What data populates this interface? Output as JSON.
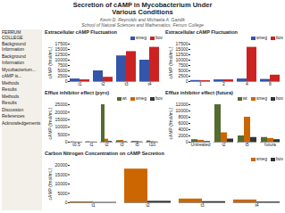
{
  "title": "Secretion of cAMP in Mycobacterium Under\nVarious Conditions",
  "subtitle": "Kevin D. Reynolds and Michaela A. Gazdik\nSchool of Natural Sciences and Mathematics, Ferrum College",
  "annotations": [
    "FERRUM\nCOLLEGE",
    "Background Information",
    "Background",
    "Information",
    "Mycobacterium...",
    "cAMP is...",
    "Methods",
    "Results",
    "Methods",
    "Results",
    "Discussion",
    "References",
    "Acknowledgements"
  ],
  "chart_data": [
    {
      "type": "bar",
      "title": "Extracellular cAMP Fluctuation",
      "categories": [
        "t1",
        "t2",
        "t3",
        "t4"
      ],
      "series": [
        {
          "name": "smeg",
          "color": "#3355aa",
          "values": [
            1200,
            5000,
            12000,
            10000
          ]
        },
        {
          "name": "bov",
          "color": "#cc2222",
          "values": [
            800,
            2000,
            14000,
            16000
          ]
        }
      ],
      "ylabel": "cAMP (fmol/mL)",
      "ylim": [
        0,
        17500
      ],
      "yticks": [
        0,
        2500,
        5000,
        7500,
        10000,
        12500,
        15000,
        17500
      ],
      "grid": false,
      "legend": "upper right"
    },
    {
      "type": "bar",
      "title": "Extracellular cAMP Fluctuation",
      "categories": [
        "1",
        "2",
        "4",
        "8"
      ],
      "series": [
        {
          "name": "smeg",
          "color": "#3355aa",
          "values": [
            500,
            800,
            1200,
            1000
          ]
        },
        {
          "name": "bov",
          "color": "#cc2222",
          "values": [
            400,
            800,
            16000,
            3000
          ]
        }
      ],
      "ylabel": "cAMP (fmol/mL)",
      "ylim": [
        0,
        17500
      ],
      "yticks": [
        0,
        2500,
        5000,
        7500,
        10000,
        12500,
        15000,
        17500
      ],
      "grid": false,
      "legend": "upper right"
    },
    {
      "type": "bar",
      "title": "Efflux inhibitor effect (pyro)",
      "categories": [
        "t0.5",
        "t1",
        "t2",
        "t3",
        "t5",
        "t10"
      ],
      "series": [
        {
          "name": "wt",
          "color": "#556b2f",
          "values": [
            200,
            300,
            25000,
            1000,
            500,
            800
          ]
        },
        {
          "name": "smeg",
          "color": "#cc6600",
          "values": [
            100,
            150,
            2000,
            1200,
            600,
            400
          ]
        },
        {
          "name": "bov",
          "color": "#333333",
          "values": [
            50,
            100,
            500,
            300,
            200,
            150
          ]
        }
      ],
      "ylabel": "cAMP (fmol/mL)",
      "ylim": [
        0,
        25000
      ],
      "yticks": [
        0,
        5000,
        10000,
        15000,
        20000,
        25000
      ],
      "grid": false,
      "legend": "upper right"
    },
    {
      "type": "bar",
      "title": "Efflux inhibitor effect (futura)",
      "categories": [
        "Untreated",
        "t2",
        "t5",
        "futura"
      ],
      "series": [
        {
          "name": "wt",
          "color": "#556b2f",
          "values": [
            800,
            12000,
            2000,
            1500
          ]
        },
        {
          "name": "smeg",
          "color": "#cc6600",
          "values": [
            600,
            3000,
            8000,
            1200
          ]
        },
        {
          "name": "bov",
          "color": "#333333",
          "values": [
            200,
            1000,
            1500,
            800
          ]
        }
      ],
      "ylabel": "cAMP (fmol/mL)",
      "ylim": [
        0,
        12000
      ],
      "yticks": [
        0,
        2000,
        4000,
        6000,
        8000,
        10000,
        12000
      ],
      "grid": false,
      "legend": "upper right"
    },
    {
      "type": "bar",
      "title": "Carbon Nitrogen Concentration on cAMP Secretion",
      "categories": [
        "t1",
        "t2",
        "t3",
        "t4"
      ],
      "series": [
        {
          "name": "smeg",
          "color": "#cc6600",
          "values": [
            500,
            18000,
            2000,
            1500
          ]
        },
        {
          "name": "bov",
          "color": "#333333",
          "values": [
            200,
            800,
            600,
            400
          ]
        }
      ],
      "ylabel": "cAMP (fmol/mL)",
      "ylim": [
        0,
        20000
      ],
      "yticks": [
        0,
        5000,
        10000,
        15000,
        20000
      ],
      "grid": false,
      "legend": "upper right"
    }
  ]
}
